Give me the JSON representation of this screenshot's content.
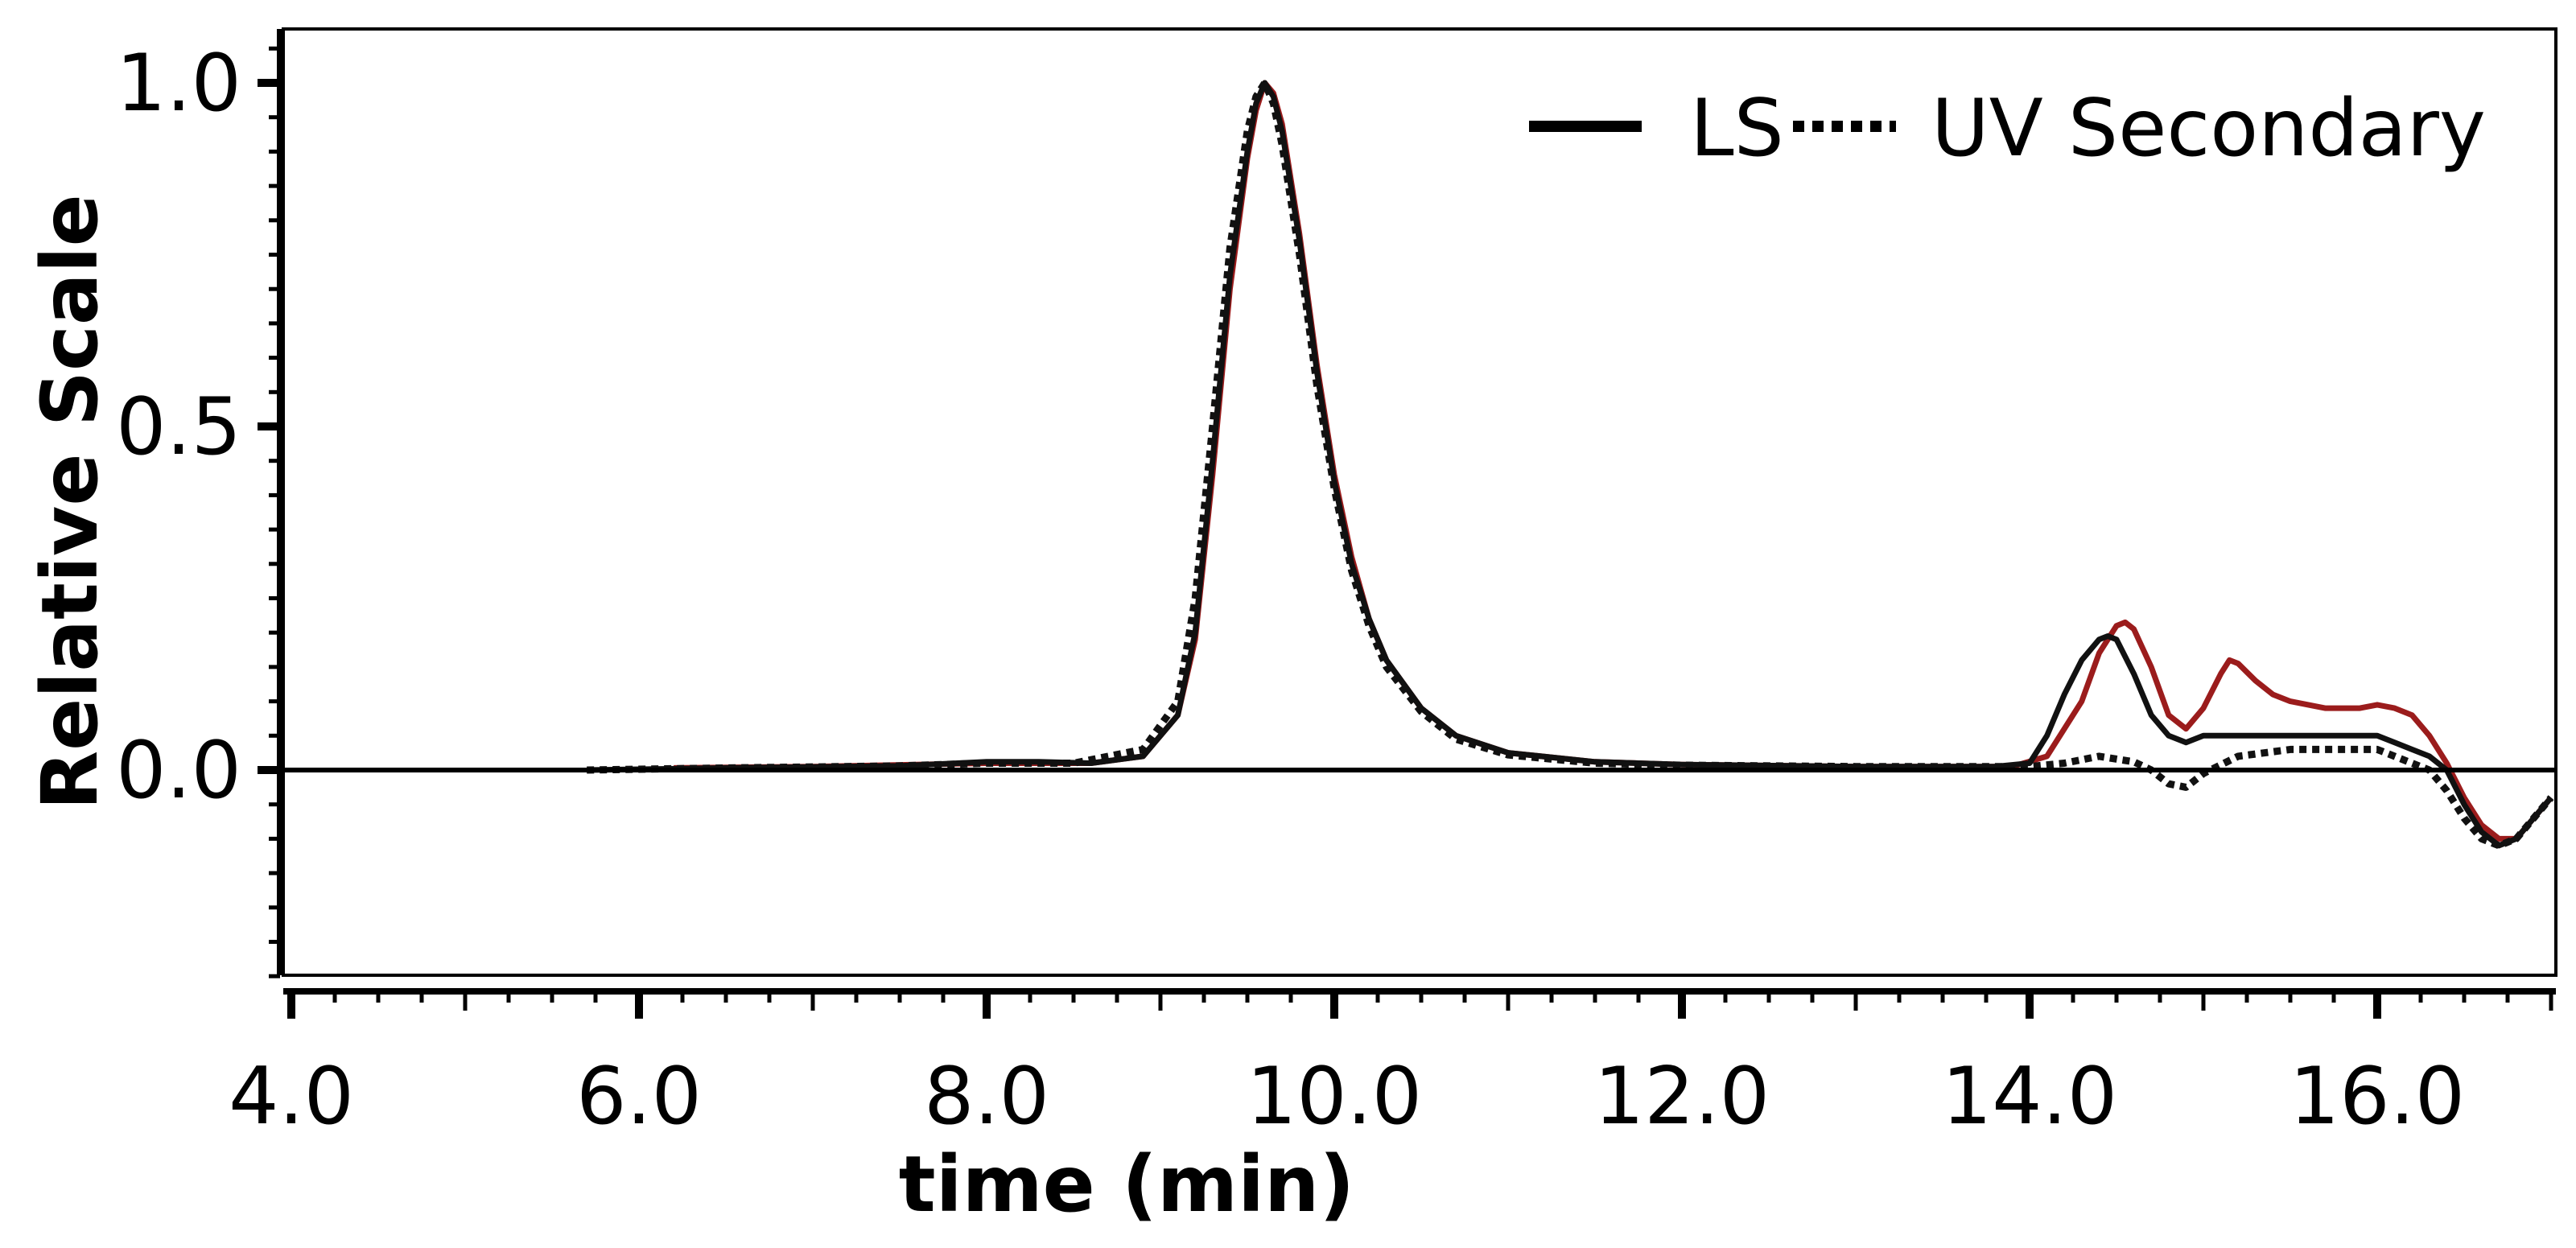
{
  "chart_data": {
    "type": "line",
    "title": "",
    "xlabel": "time (min)",
    "ylabel": "Relative Scale",
    "xlim": [
      4.0,
      17.0
    ],
    "ylim": [
      -0.3,
      1.07
    ],
    "x_ticks": [
      4.0,
      6.0,
      8.0,
      10.0,
      12.0,
      14.0,
      16.0
    ],
    "x_tick_labels": [
      "4.0",
      "6.0",
      "8.0",
      "10.0",
      "12.0",
      "14.0",
      "16.0"
    ],
    "y_ticks": [
      0.0,
      0.5,
      1.0
    ],
    "y_tick_labels": [
      "0.0",
      "0.5",
      "1.0"
    ],
    "grid": false,
    "legend_position": "top-right",
    "legend": [
      {
        "label": "LS",
        "style": "solid"
      },
      {
        "label": "UV Secondary",
        "style": "dotted"
      }
    ],
    "baseline": 0.0,
    "series": [
      {
        "name": "LS",
        "style": "solid",
        "color": "#111111",
        "x": [
          5.7,
          6.5,
          7.5,
          8.0,
          8.3,
          8.6,
          8.9,
          9.1,
          9.2,
          9.3,
          9.4,
          9.5,
          9.55,
          9.6,
          9.65,
          9.7,
          9.8,
          9.9,
          10.0,
          10.1,
          10.2,
          10.3,
          10.5,
          10.7,
          11.0,
          11.5,
          12.0,
          13.0,
          13.8,
          14.0,
          14.1,
          14.2,
          14.3,
          14.4,
          14.45,
          14.5,
          14.6,
          14.7,
          14.8,
          14.9,
          15.0,
          15.2,
          15.5,
          15.8,
          16.0,
          16.1,
          16.2,
          16.3,
          16.4,
          16.5,
          16.6,
          16.7,
          16.8,
          16.9,
          17.0
        ],
        "y": [
          0.0,
          0.003,
          0.006,
          0.012,
          0.012,
          0.01,
          0.02,
          0.08,
          0.2,
          0.45,
          0.72,
          0.9,
          0.97,
          1.0,
          0.98,
          0.93,
          0.77,
          0.58,
          0.42,
          0.3,
          0.22,
          0.16,
          0.09,
          0.05,
          0.025,
          0.012,
          0.008,
          0.005,
          0.005,
          0.01,
          0.05,
          0.11,
          0.16,
          0.19,
          0.195,
          0.19,
          0.14,
          0.08,
          0.05,
          0.04,
          0.05,
          0.05,
          0.05,
          0.05,
          0.05,
          0.04,
          0.03,
          0.02,
          0.0,
          -0.05,
          -0.09,
          -0.11,
          -0.1,
          -0.07,
          -0.04
        ]
      },
      {
        "name": "UV Secondary",
        "style": "dotted",
        "color": "#111111",
        "x": [
          5.7,
          6.5,
          7.5,
          8.0,
          8.5,
          8.9,
          9.1,
          9.2,
          9.3,
          9.4,
          9.5,
          9.55,
          9.6,
          9.65,
          9.7,
          9.8,
          9.9,
          10.0,
          10.1,
          10.2,
          10.3,
          10.5,
          10.7,
          11.0,
          11.5,
          12.0,
          13.0,
          13.8,
          14.0,
          14.2,
          14.4,
          14.6,
          14.7,
          14.8,
          14.9,
          15.0,
          15.2,
          15.5,
          15.8,
          16.0,
          16.1,
          16.2,
          16.3,
          16.4,
          16.5,
          16.6,
          16.7,
          16.8,
          16.9,
          17.0
        ],
        "y": [
          0.0,
          0.003,
          0.006,
          0.01,
          0.01,
          0.03,
          0.1,
          0.25,
          0.5,
          0.76,
          0.93,
          0.98,
          1.0,
          0.97,
          0.91,
          0.75,
          0.56,
          0.41,
          0.29,
          0.21,
          0.15,
          0.085,
          0.045,
          0.022,
          0.01,
          0.007,
          0.005,
          0.005,
          0.005,
          0.01,
          0.02,
          0.012,
          0.0,
          -0.02,
          -0.025,
          -0.005,
          0.02,
          0.03,
          0.03,
          0.03,
          0.02,
          0.01,
          0.0,
          -0.03,
          -0.07,
          -0.1,
          -0.11,
          -0.1,
          -0.07,
          -0.04
        ]
      },
      {
        "name": "",
        "style": "solid",
        "color": "#9b1c1c",
        "x": [
          6.2,
          7.0,
          8.0,
          8.6,
          8.9,
          9.1,
          9.2,
          9.3,
          9.4,
          9.5,
          9.55,
          9.6,
          9.65,
          9.7,
          9.8,
          9.9,
          10.0,
          10.1,
          10.2,
          10.3,
          10.5,
          10.7,
          11.0,
          11.5,
          12.0,
          13.0,
          13.9,
          14.1,
          14.3,
          14.4,
          14.5,
          14.55,
          14.6,
          14.7,
          14.8,
          14.9,
          15.0,
          15.1,
          15.15,
          15.2,
          15.3,
          15.4,
          15.5,
          15.7,
          15.9,
          16.0,
          16.1,
          16.2,
          16.3,
          16.4,
          16.5,
          16.6,
          16.7,
          16.8,
          16.9,
          17.0
        ],
        "y": [
          0.003,
          0.005,
          0.01,
          0.01,
          0.02,
          0.08,
          0.19,
          0.43,
          0.7,
          0.89,
          0.96,
          1.0,
          0.985,
          0.94,
          0.78,
          0.59,
          0.43,
          0.31,
          0.22,
          0.16,
          0.09,
          0.05,
          0.025,
          0.012,
          0.008,
          0.005,
          0.005,
          0.02,
          0.1,
          0.17,
          0.21,
          0.215,
          0.205,
          0.15,
          0.08,
          0.06,
          0.09,
          0.14,
          0.16,
          0.155,
          0.13,
          0.11,
          0.1,
          0.09,
          0.09,
          0.095,
          0.09,
          0.08,
          0.05,
          0.01,
          -0.04,
          -0.08,
          -0.1,
          -0.1,
          -0.07,
          -0.04
        ]
      }
    ]
  }
}
